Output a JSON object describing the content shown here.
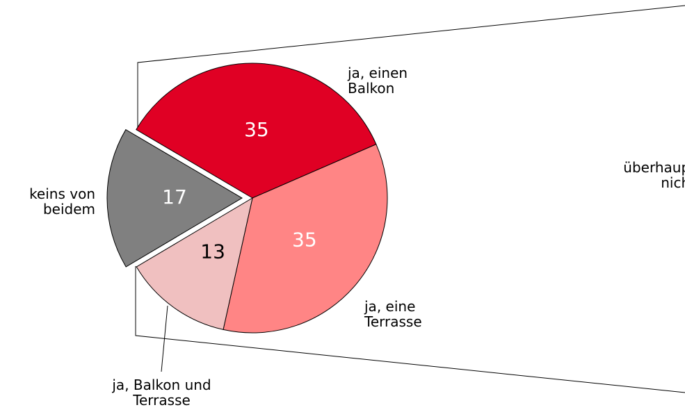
{
  "chart_data": {
    "type": "pie",
    "categories": [
      "ja, einen Balkon",
      "ja, eine Terrasse",
      "ja, Balkon und Terrasse",
      "keins von beidem"
    ],
    "values": [
      35,
      35,
      13,
      17
    ],
    "colors": [
      "#e00024",
      "#ff8585",
      "#f0c0c0",
      "#808080"
    ],
    "label_colors": [
      "#ffffff",
      "#ffffff",
      "#000000",
      "#ffffff"
    ],
    "explode": [
      false,
      false,
      false,
      true
    ],
    "annotation": "überhaupt nicht"
  }
}
